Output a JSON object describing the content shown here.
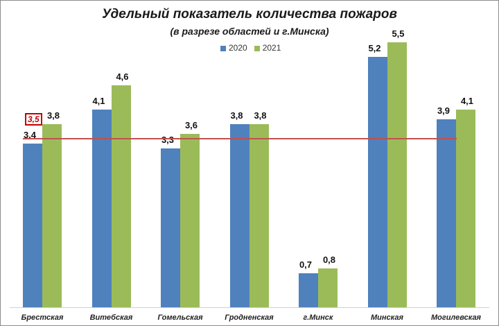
{
  "chart_data": {
    "type": "bar",
    "title": "Удельный показатель количества пожаров",
    "subtitle": "(в разрезе областей и г.Минска)",
    "xlabel": "",
    "ylabel": "",
    "categories": [
      "Брестская",
      "Витебская",
      "Гомельская",
      "Гродненская",
      "г.Минск",
      "Минская",
      "Могилевская"
    ],
    "series": [
      {
        "name": "2020",
        "color": "#4f81bd",
        "values": [
          3.4,
          4.1,
          3.3,
          3.8,
          0.7,
          5.2,
          3.9
        ],
        "labels": [
          "3,4",
          "4,1",
          "3,3",
          "3,8",
          "0,7",
          "5,2",
          "3,9"
        ]
      },
      {
        "name": "2021",
        "color": "#9bbb59",
        "values": [
          3.8,
          4.6,
          3.6,
          3.8,
          0.8,
          5.5,
          4.1
        ],
        "labels": [
          "3,8",
          "4,6",
          "3,6",
          "3,8",
          "0,8",
          "5,5",
          "4,1"
        ]
      }
    ],
    "reference_line": {
      "value": 3.5,
      "label": "3,5",
      "color": "#c0504d"
    },
    "legend_position": "top",
    "grid": false,
    "ylim": [
      0,
      5.8
    ]
  },
  "legend": {
    "items": [
      "2020",
      "2021"
    ]
  }
}
